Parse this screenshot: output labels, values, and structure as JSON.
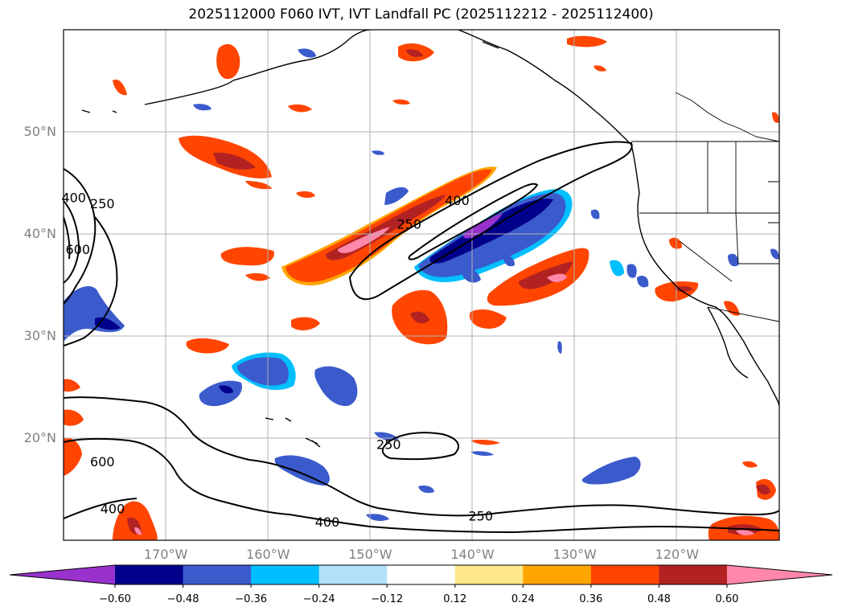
{
  "title": "2025112000 F060 IVT, IVT Landfall PC (2025112212 - 2025112400)",
  "lat_labels": [
    {
      "text": "50°N",
      "lat": 50
    },
    {
      "text": "40°N",
      "lat": 40
    },
    {
      "text": "30°N",
      "lat": 30
    },
    {
      "text": "20°N",
      "lat": 20
    }
  ],
  "lon_labels": [
    {
      "text": "170°W",
      "lon": -170
    },
    {
      "text": "160°W",
      "lon": -160
    },
    {
      "text": "150°W",
      "lon": -150
    },
    {
      "text": "140°W",
      "lon": -140
    },
    {
      "text": "130°W",
      "lon": -130
    },
    {
      "text": "120°W",
      "lon": -120
    }
  ],
  "map_extent": {
    "lon_min": -180,
    "lon_max": -110,
    "lat_min": 10,
    "lat_max": 60
  },
  "contour_labels": [
    {
      "text": "400",
      "lon": -179,
      "lat": 43.6
    },
    {
      "text": "250",
      "lon": -176.2,
      "lat": 43.0
    },
    {
      "text": "600",
      "lon": -178.6,
      "lat": 38.5
    },
    {
      "text": "400",
      "lon": -141.5,
      "lat": 43.3
    },
    {
      "text": "250",
      "lon": -146.2,
      "lat": 41.0
    },
    {
      "text": "250",
      "lon": -148.2,
      "lat": 19.4
    },
    {
      "text": "600",
      "lon": -176.2,
      "lat": 17.7
    },
    {
      "text": "400",
      "lon": -175.2,
      "lat": 13.1
    },
    {
      "text": "400",
      "lon": -154.2,
      "lat": 11.8
    },
    {
      "text": "250",
      "lon": -139.2,
      "lat": 12.4
    }
  ],
  "colorbar": {
    "ticks": [
      "−0.60",
      "−0.48",
      "−0.36",
      "−0.24",
      "−0.12",
      "0.12",
      "0.24",
      "0.36",
      "0.48",
      "0.60"
    ],
    "colors": [
      "#9932cc",
      "#00008b",
      "#3b5bcc",
      "#00bfff",
      "#b0e0fa",
      "#ffffff",
      "#ffe88a",
      "#ffa500",
      "#ff4500",
      "#b22222",
      "#ff88aa"
    ]
  }
}
